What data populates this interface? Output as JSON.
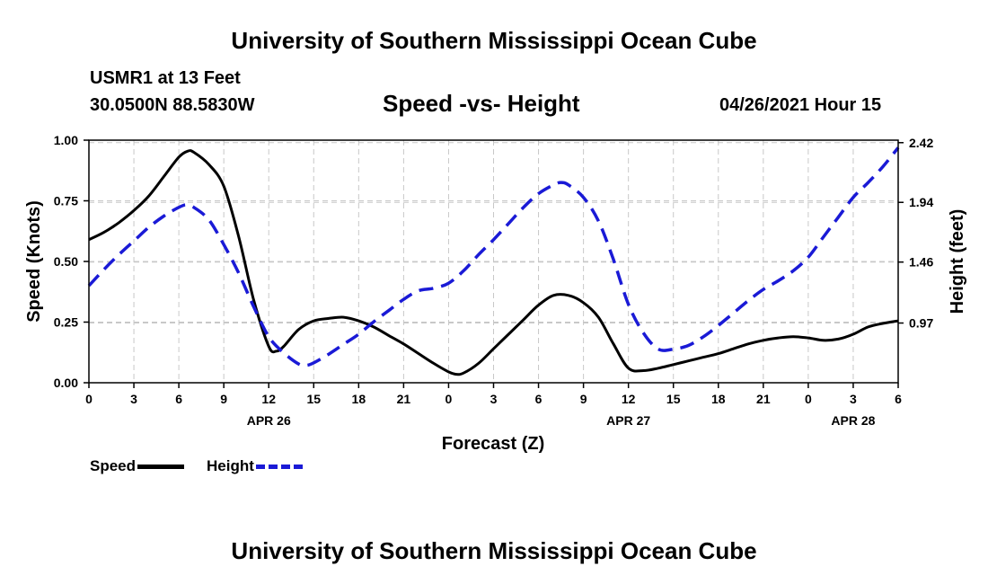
{
  "header": {
    "title_top": "University of Southern Mississippi Ocean Cube",
    "title_bottom": "University of Southern Mississippi Ocean Cube",
    "station": "USMR1 at 13 Feet",
    "coords": "30.0500N  88.5830W",
    "datetime": "04/26/2021 Hour 15"
  },
  "chart_data": {
    "type": "line",
    "title": "Speed -vs- Height",
    "xlabel": "Forecast (Z)",
    "ylabel_left": "Speed (Knots)",
    "ylabel_right": "Height (feet)",
    "x_range": [
      0,
      54
    ],
    "x_ticks": [
      0,
      3,
      6,
      9,
      12,
      15,
      18,
      21,
      24,
      27,
      30,
      33,
      36,
      39,
      42,
      45,
      48,
      51,
      54
    ],
    "x_tick_labels": [
      "0",
      "3",
      "6",
      "9",
      "12",
      "15",
      "18",
      "21",
      "0",
      "3",
      "6",
      "9",
      "12",
      "15",
      "18",
      "21",
      "0",
      "3",
      "6"
    ],
    "date_labels": [
      {
        "x": 12,
        "label": "APR 26"
      },
      {
        "x": 36,
        "label": "APR 27"
      },
      {
        "x": 51,
        "label": "APR 28"
      }
    ],
    "y_left": {
      "range": [
        0,
        1.0
      ],
      "ticks": [
        0,
        0.25,
        0.5,
        0.75,
        1.0
      ],
      "tick_labels": [
        "0.00",
        "0.25",
        "0.50",
        "0.75",
        "1.00"
      ]
    },
    "y_right": {
      "range": [
        0.49,
        2.44
      ],
      "ticks": [
        0.97,
        1.46,
        1.94,
        2.42
      ],
      "tick_labels": [
        "0.97",
        "1.46",
        "1.94",
        "2.42"
      ]
    },
    "grid": true,
    "legend_position": "bottom-left",
    "series": [
      {
        "name": "Speed",
        "axis": "left",
        "color": "#000000",
        "style": "solid",
        "x": [
          0,
          1,
          2,
          3,
          4,
          5,
          6,
          6.6,
          7,
          8,
          9,
          10,
          11,
          12,
          12.5,
          13,
          14,
          15,
          16,
          17,
          18,
          19,
          20,
          21,
          22,
          23,
          24,
          24.5,
          25,
          26,
          27,
          28,
          29,
          30,
          31,
          32,
          33,
          34,
          35,
          36,
          37,
          38,
          39,
          40,
          41,
          42,
          43,
          44,
          45,
          46,
          47,
          48,
          49,
          50,
          51,
          52,
          53,
          54
        ],
        "values": [
          0.59,
          0.62,
          0.66,
          0.71,
          0.77,
          0.85,
          0.93,
          0.955,
          0.95,
          0.9,
          0.81,
          0.6,
          0.34,
          0.15,
          0.13,
          0.15,
          0.22,
          0.255,
          0.265,
          0.27,
          0.255,
          0.23,
          0.195,
          0.16,
          0.12,
          0.08,
          0.045,
          0.035,
          0.04,
          0.08,
          0.14,
          0.2,
          0.26,
          0.32,
          0.36,
          0.36,
          0.33,
          0.27,
          0.16,
          0.06,
          0.05,
          0.06,
          0.075,
          0.09,
          0.105,
          0.12,
          0.14,
          0.16,
          0.175,
          0.185,
          0.19,
          0.185,
          0.175,
          0.18,
          0.2,
          0.23,
          0.245,
          0.255
        ]
      },
      {
        "name": "Height",
        "axis": "right",
        "color": "#1a1ad6",
        "style": "dashed",
        "x": [
          0,
          1,
          2,
          3,
          4,
          5,
          6,
          6.5,
          7,
          8,
          9,
          10,
          11,
          12,
          13,
          14,
          14.5,
          15,
          16,
          17,
          18,
          19,
          20,
          21,
          22,
          23,
          24,
          25,
          26,
          27,
          28,
          29,
          30,
          31,
          31.5,
          32,
          33,
          34,
          35,
          36,
          37,
          38,
          39,
          40,
          41,
          42,
          43,
          44,
          45,
          46,
          47,
          48,
          49,
          50,
          51,
          52,
          53,
          54
        ],
        "values": [
          1.27,
          1.4,
          1.52,
          1.63,
          1.74,
          1.83,
          1.9,
          1.92,
          1.9,
          1.8,
          1.6,
          1.37,
          1.1,
          0.86,
          0.73,
          0.64,
          0.63,
          0.65,
          0.72,
          0.8,
          0.88,
          0.98,
          1.07,
          1.16,
          1.23,
          1.25,
          1.29,
          1.39,
          1.52,
          1.64,
          1.77,
          1.9,
          2.01,
          2.08,
          2.1,
          2.08,
          1.98,
          1.79,
          1.48,
          1.12,
          0.89,
          0.76,
          0.76,
          0.79,
          0.86,
          0.95,
          1.05,
          1.15,
          1.24,
          1.31,
          1.39,
          1.5,
          1.66,
          1.82,
          1.98,
          2.1,
          2.23,
          2.38
        ]
      }
    ]
  }
}
